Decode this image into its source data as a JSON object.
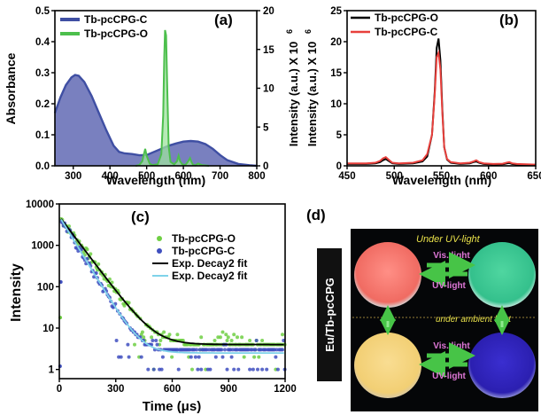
{
  "panels": {
    "a": {
      "label": "(a)"
    },
    "b": {
      "label": "(b)"
    },
    "c": {
      "label": "(c)"
    },
    "d": {
      "label": "(d)"
    }
  },
  "chart_data": [
    {
      "type": "area",
      "id": "a",
      "xlabel": "Wavelength (nm)",
      "ylabel": "Absorbance",
      "ylabel_right": "Intensity (a.u.) X 10",
      "ylabel_right_exp": "6",
      "xlim": [
        250,
        800
      ],
      "ylim": [
        0,
        0.5
      ],
      "ylim_right": [
        0,
        20
      ],
      "xticks": [
        "300",
        "400",
        "500",
        "600",
        "700",
        "800"
      ],
      "yticks": [
        "0.0",
        "0.1",
        "0.2",
        "0.3",
        "0.4",
        "0.5"
      ],
      "yticks_right": [
        "0",
        "5",
        "10",
        "15",
        "20"
      ],
      "legend_position": "top-left",
      "series": [
        {
          "name": "Tb-pcCPG-C",
          "axis": "left",
          "color": "#3f4fa3",
          "x": [
            250,
            265,
            280,
            295,
            305,
            315,
            330,
            350,
            370,
            390,
            410,
            425,
            440,
            460,
            480,
            500,
            520,
            540,
            560,
            580,
            600,
            620,
            640,
            660,
            680,
            700,
            720,
            750,
            780,
            800
          ],
          "y": [
            0.17,
            0.22,
            0.26,
            0.285,
            0.293,
            0.29,
            0.27,
            0.225,
            0.17,
            0.115,
            0.065,
            0.045,
            0.04,
            0.038,
            0.034,
            0.035,
            0.045,
            0.055,
            0.065,
            0.072,
            0.078,
            0.08,
            0.078,
            0.07,
            0.055,
            0.035,
            0.018,
            0.006,
            0.002,
            0.0
          ]
        },
        {
          "name": "Tb-pcCPG-O",
          "axis": "right",
          "color": "#4cbf4c",
          "x": [
            470,
            480,
            488,
            492,
            496,
            500,
            508,
            515,
            530,
            540,
            545,
            548,
            550,
            553,
            556,
            560,
            565,
            575,
            583,
            587,
            591,
            597,
            605,
            612,
            618,
            622,
            626,
            632,
            640,
            650,
            670
          ],
          "y": [
            0,
            0.1,
            0.6,
            1.4,
            2.2,
            1.3,
            0.3,
            0.1,
            0.2,
            1.5,
            6.5,
            14,
            17.5,
            16.8,
            10,
            2.5,
            0.5,
            0.2,
            0.6,
            1.3,
            0.6,
            0.2,
            0.1,
            0.5,
            1.0,
            0.5,
            0.15,
            0.05,
            0.3,
            0.1,
            0
          ]
        }
      ]
    },
    {
      "type": "line",
      "id": "b",
      "xlabel": "Wavelength (nm)",
      "ylabel": "Intensity (a.u.) X 10",
      "ylabel_exp": "6",
      "xlim": [
        450,
        650
      ],
      "ylim": [
        0,
        25
      ],
      "xticks": [
        "450",
        "500",
        "550",
        "600",
        "650"
      ],
      "yticks": [
        "0",
        "5",
        "10",
        "15",
        "20",
        "25"
      ],
      "legend_position": "top-left",
      "series": [
        {
          "name": "Tb-pcCPG-O",
          "color": "#000000",
          "x": [
            450,
            470,
            480,
            485,
            488,
            491,
            494,
            498,
            505,
            520,
            530,
            535,
            540,
            543,
            545,
            547,
            549,
            551,
            553,
            556,
            560,
            570,
            580,
            584,
            587,
            590,
            595,
            605,
            615,
            620,
            622,
            625,
            630,
            650
          ],
          "y": [
            0.3,
            0.3,
            0.4,
            0.6,
            0.9,
            1.1,
            0.8,
            0.4,
            0.3,
            0.4,
            0.7,
            1.5,
            5,
            12,
            19,
            20.5,
            17,
            9,
            3,
            1,
            0.5,
            0.3,
            0.4,
            0.6,
            0.7,
            0.5,
            0.3,
            0.2,
            0.25,
            0.4,
            0.45,
            0.3,
            0.2,
            0.1
          ]
        },
        {
          "name": "Tb-pcCPG-C",
          "color": "#e8403c",
          "x": [
            450,
            470,
            480,
            485,
            488,
            491,
            494,
            498,
            505,
            520,
            530,
            535,
            540,
            543,
            545,
            547,
            549,
            551,
            553,
            556,
            560,
            570,
            580,
            584,
            587,
            590,
            595,
            605,
            615,
            620,
            622,
            625,
            630,
            650
          ],
          "y": [
            0.4,
            0.4,
            0.5,
            0.8,
            1.2,
            1.4,
            1.0,
            0.5,
            0.4,
            0.5,
            0.9,
            1.9,
            5,
            11.5,
            17.5,
            18.2,
            15.5,
            8.5,
            3,
            1.1,
            0.6,
            0.4,
            0.5,
            0.7,
            0.9,
            0.6,
            0.4,
            0.3,
            0.35,
            0.55,
            0.6,
            0.4,
            0.3,
            0.2
          ]
        }
      ]
    },
    {
      "type": "scatter",
      "id": "c",
      "xlabel": "Time (μs)",
      "ylabel": "Intensity",
      "xlim": [
        0,
        1200
      ],
      "ylim": [
        0.6,
        10000
      ],
      "yscale": "log",
      "xticks": [
        "0",
        "300",
        "600",
        "900",
        "1200"
      ],
      "yticks": [
        "1",
        "10",
        "100",
        "1000",
        "10000"
      ],
      "legend_position": "top-right",
      "series": [
        {
          "name": "Tb-pcCPG-O",
          "color": "#6fcf43",
          "kind": "points",
          "amplitude": 5000,
          "tau": 72,
          "baseline": 4
        },
        {
          "name": "Tb-pcCPG-C",
          "color": "#3f4fbf",
          "kind": "points",
          "amplitude": 5000,
          "tau": 58,
          "baseline": 2.5
        },
        {
          "name": "Exp. Decay2 fit",
          "color": "#000000",
          "kind": "fit",
          "amplitude": 5000,
          "tau": 72,
          "baseline": 4
        },
        {
          "name": "Exp. Decay2 fit",
          "color": "#7fd3ea",
          "kind": "fit",
          "amplitude": 5000,
          "tau": 58,
          "baseline": 2.5
        }
      ]
    }
  ],
  "photo": {
    "side_label": "Eu/Tb-pcCPG",
    "top_caption": "Under UV-light",
    "bottom_caption": "under ambient light",
    "arrow_top_label": "Vis. light",
    "arrow_bottom_label": "UV-light",
    "dish_top_left_color": "#f06b62",
    "dish_top_right_color": "#34c08c",
    "dish_bottom_left_color": "#f2cf74",
    "dish_bottom_right_color": "#2b1fb0"
  }
}
